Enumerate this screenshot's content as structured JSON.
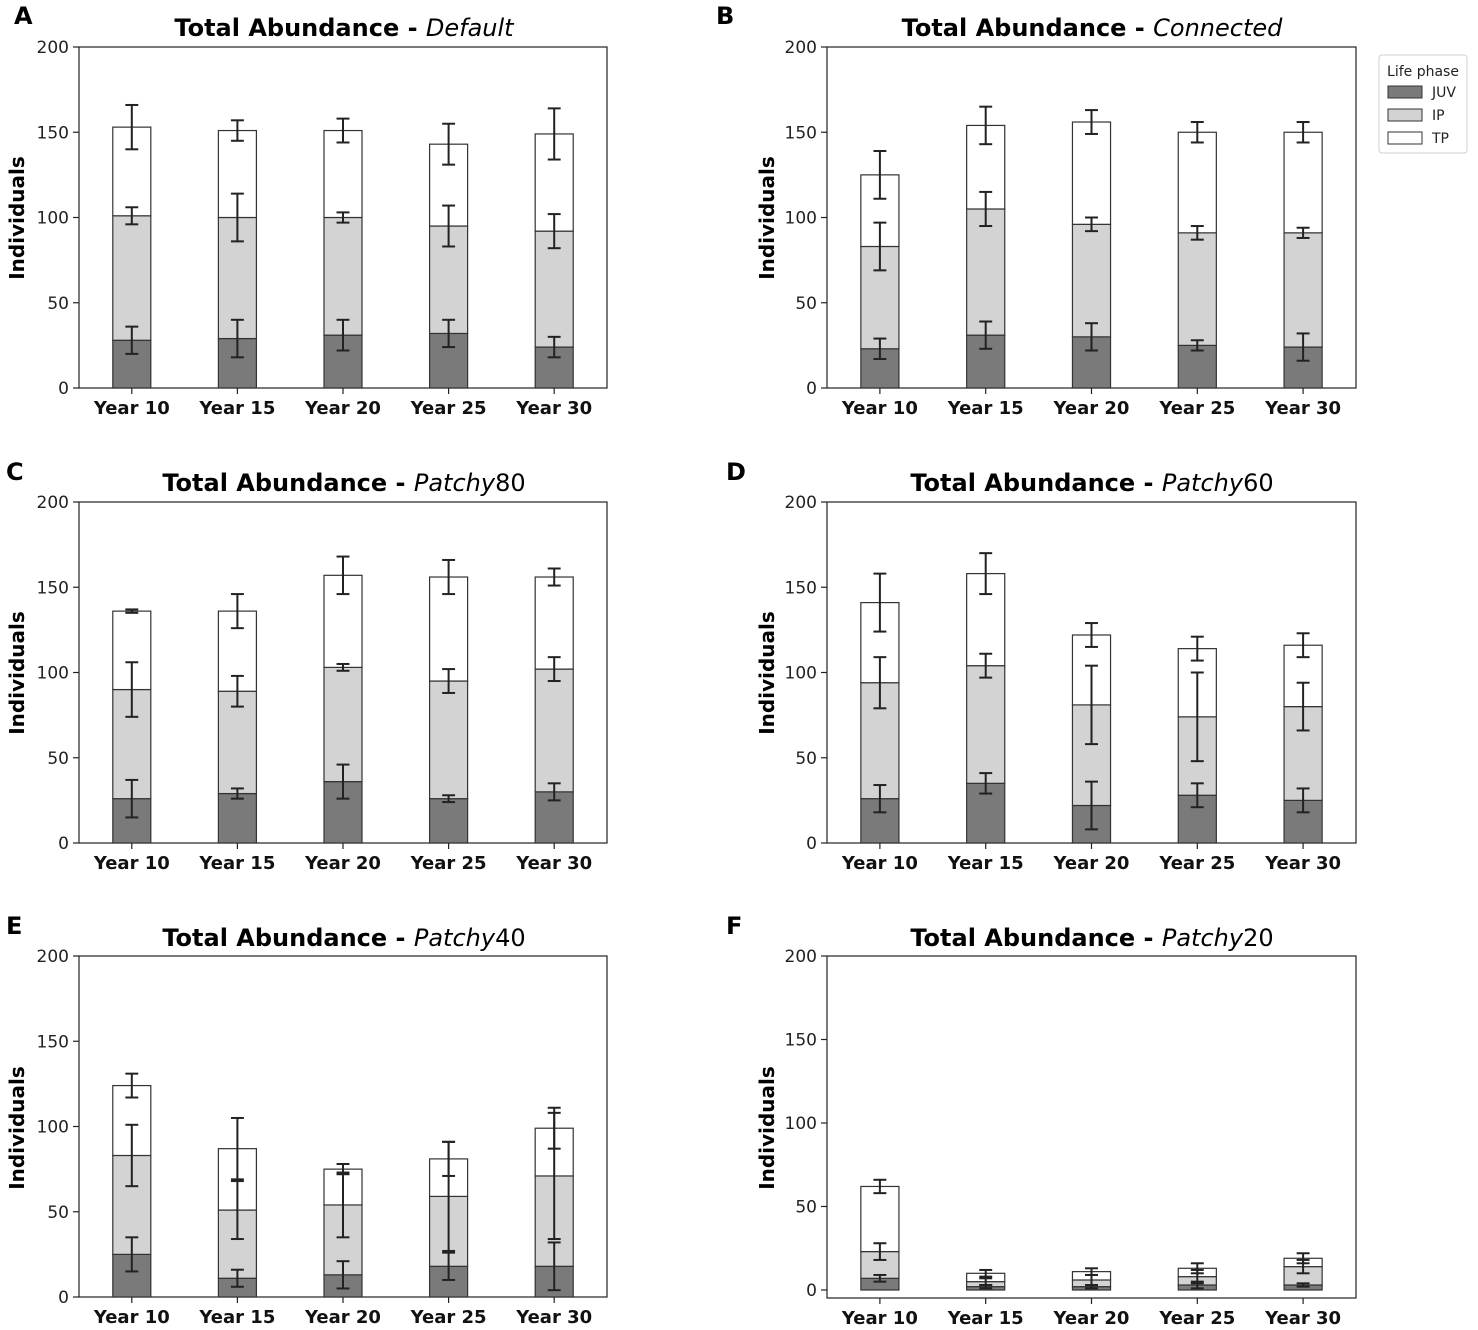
{
  "legend": {
    "title": "Life phase",
    "entries": [
      {
        "label": "JUV",
        "color": "#7a7a7a"
      },
      {
        "label": "IP",
        "color": "#d3d3d3"
      },
      {
        "label": "TP",
        "color": "#ffffff"
      }
    ]
  },
  "chart_data": [
    {
      "panel": "A",
      "type": "bar",
      "stacked": true,
      "title_prefix": "Total Abundance - ",
      "title_italic": "Default",
      "title_suffix": "",
      "xlabel": "",
      "ylabel": "Individuals",
      "ylim": [
        0,
        200
      ],
      "yticks": [
        0,
        50,
        100,
        150,
        200
      ],
      "categories": [
        "Year 10",
        "Year 15",
        "Year 20",
        "Year 25",
        "Year 30"
      ],
      "series": [
        {
          "name": "JUV",
          "values": [
            28,
            29,
            31,
            32,
            24
          ],
          "err": [
            8,
            11,
            9,
            8,
            6
          ]
        },
        {
          "name": "IP",
          "values": [
            73,
            71,
            69,
            63,
            68
          ],
          "err": [
            5,
            14,
            3,
            12,
            10
          ]
        },
        {
          "name": "TP",
          "values": [
            52,
            51,
            51,
            48,
            57
          ],
          "err": [
            13,
            6,
            7,
            12,
            15
          ]
        }
      ]
    },
    {
      "panel": "B",
      "type": "bar",
      "stacked": true,
      "title_prefix": "Total Abundance - ",
      "title_italic": "Connected",
      "title_suffix": "",
      "xlabel": "",
      "ylabel": "Individuals",
      "ylim": [
        0,
        200
      ],
      "yticks": [
        0,
        50,
        100,
        150,
        200
      ],
      "categories": [
        "Year 10",
        "Year 15",
        "Year 20",
        "Year 25",
        "Year 30"
      ],
      "series": [
        {
          "name": "JUV",
          "values": [
            23,
            31,
            30,
            25,
            24
          ],
          "err": [
            6,
            8,
            8,
            3,
            8
          ]
        },
        {
          "name": "IP",
          "values": [
            60,
            74,
            66,
            66,
            67
          ],
          "err": [
            14,
            10,
            4,
            4,
            3
          ]
        },
        {
          "name": "TP",
          "values": [
            42,
            49,
            60,
            59,
            59
          ],
          "err": [
            14,
            11,
            7,
            6,
            6
          ]
        }
      ]
    },
    {
      "panel": "C",
      "type": "bar",
      "stacked": true,
      "title_prefix": "Total Abundance - ",
      "title_italic": "Patchy",
      "title_suffix": "80",
      "xlabel": "",
      "ylabel": "Individuals",
      "ylim": [
        0,
        200
      ],
      "yticks": [
        0,
        50,
        100,
        150,
        200
      ],
      "categories": [
        "Year 10",
        "Year 15",
        "Year 20",
        "Year 25",
        "Year 30"
      ],
      "series": [
        {
          "name": "JUV",
          "values": [
            26,
            29,
            36,
            26,
            30
          ],
          "err": [
            11,
            3,
            10,
            2,
            5
          ]
        },
        {
          "name": "IP",
          "values": [
            64,
            60,
            67,
            69,
            72
          ],
          "err": [
            16,
            9,
            2,
            7,
            7
          ]
        },
        {
          "name": "TP",
          "values": [
            46,
            47,
            54,
            61,
            54
          ],
          "err": [
            1,
            10,
            11,
            10,
            5
          ]
        }
      ]
    },
    {
      "panel": "D",
      "type": "bar",
      "stacked": true,
      "title_prefix": "Total Abundance - ",
      "title_italic": "Patchy",
      "title_suffix": "60",
      "xlabel": "",
      "ylabel": "Individuals",
      "ylim": [
        0,
        200
      ],
      "yticks": [
        0,
        50,
        100,
        150,
        200
      ],
      "categories": [
        "Year 10",
        "Year 15",
        "Year 20",
        "Year 25",
        "Year 30"
      ],
      "series": [
        {
          "name": "JUV",
          "values": [
            26,
            35,
            22,
            28,
            25
          ],
          "err": [
            8,
            6,
            14,
            7,
            7
          ]
        },
        {
          "name": "IP",
          "values": [
            68,
            69,
            59,
            46,
            55
          ],
          "err": [
            15,
            7,
            23,
            26,
            14
          ]
        },
        {
          "name": "TP",
          "values": [
            47,
            54,
            41,
            40,
            36
          ],
          "err": [
            17,
            12,
            7,
            7,
            7
          ]
        }
      ]
    },
    {
      "panel": "E",
      "type": "bar",
      "stacked": true,
      "title_prefix": "Total Abundance - ",
      "title_italic": "Patchy",
      "title_suffix": "40",
      "xlabel": "",
      "ylabel": "Individuals",
      "ylim": [
        0,
        200
      ],
      "yticks": [
        0,
        50,
        100,
        150,
        200
      ],
      "categories": [
        "Year 10",
        "Year 15",
        "Year 20",
        "Year 25",
        "Year 30"
      ],
      "series": [
        {
          "name": "JUV",
          "values": [
            25,
            11,
            13,
            18,
            18
          ],
          "err": [
            10,
            5,
            8,
            8,
            14
          ]
        },
        {
          "name": "IP",
          "values": [
            58,
            40,
            41,
            41,
            53
          ],
          "err": [
            18,
            17,
            19,
            32,
            37
          ]
        },
        {
          "name": "TP",
          "values": [
            41,
            36,
            21,
            22,
            28
          ],
          "err": [
            7,
            18,
            3,
            10,
            12
          ]
        }
      ]
    },
    {
      "panel": "F",
      "type": "bar",
      "stacked": true,
      "title_prefix": "Total Abundance - ",
      "title_italic": "Patchy",
      "title_suffix": "20",
      "xlabel": "",
      "ylabel": "Individuals",
      "ylim": [
        0,
        200
      ],
      "yticks": [
        0,
        50,
        100,
        150,
        200
      ],
      "categories": [
        "Year 10",
        "Year 15",
        "Year 20",
        "Year 25",
        "Year 30"
      ],
      "series": [
        {
          "name": "JUV",
          "values": [
            7,
            2,
            2,
            3,
            3
          ],
          "err": [
            2,
            1,
            1,
            2,
            1
          ]
        },
        {
          "name": "IP",
          "values": [
            16,
            3,
            4,
            5,
            11
          ],
          "err": [
            5,
            2,
            3,
            4,
            4
          ]
        },
        {
          "name": "TP",
          "values": [
            39,
            5,
            5,
            5,
            5
          ],
          "err": [
            4,
            2,
            2,
            3,
            3
          ]
        }
      ]
    }
  ]
}
